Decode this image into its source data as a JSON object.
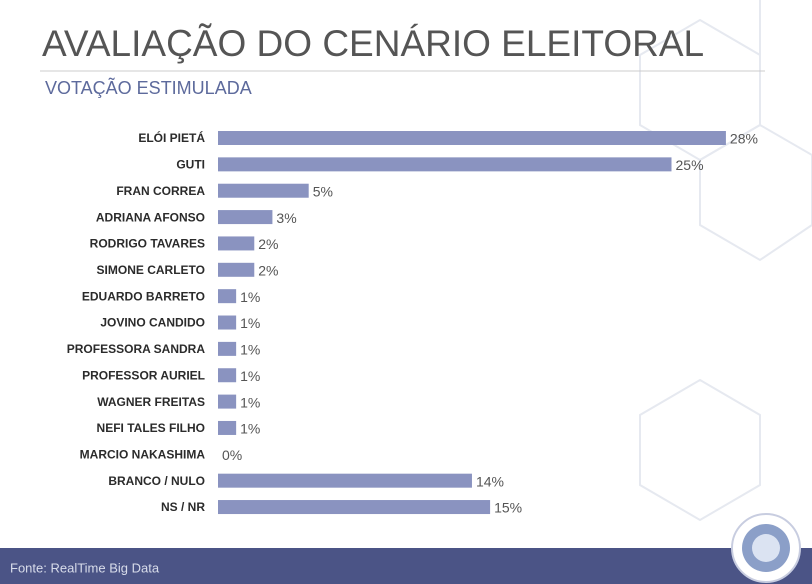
{
  "chart_data": {
    "type": "bar",
    "orientation": "horizontal",
    "title": "AVALIAÇÃO DO CENÁRIO ELEITORAL",
    "subtitle": "VOTAÇÃO ESTIMULADA",
    "source": "Fonte: RealTime Big Data",
    "categories": [
      "ELÓI PIETÁ",
      "GUTI",
      "FRAN CORREA",
      "ADRIANA AFONSO",
      "RODRIGO TAVARES",
      "SIMONE CARLETO",
      "EDUARDO BARRETO",
      "JOVINO CANDIDO",
      "PROFESSORA SANDRA",
      "PROFESSOR AURIEL",
      "WAGNER FREITAS",
      "NEFI TALES FILHO",
      "MARCIO NAKASHIMA",
      "BRANCO / NULO",
      "NS / NR"
    ],
    "values": [
      28,
      25,
      5,
      3,
      2,
      2,
      1,
      1,
      1,
      1,
      1,
      1,
      0,
      14,
      15
    ],
    "value_labels": [
      "28%",
      "25%",
      "5%",
      "3%",
      "2%",
      "2%",
      "1%",
      "1%",
      "1%",
      "1%",
      "1%",
      "1%",
      "0%",
      "14%",
      "15%"
    ],
    "color": "#8a93c0"
  }
}
